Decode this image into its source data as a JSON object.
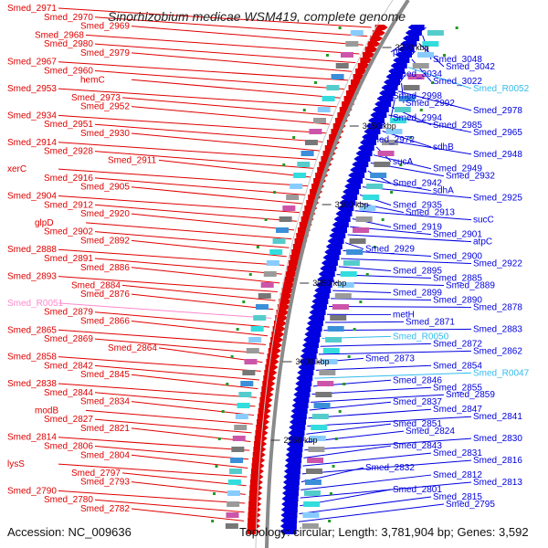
{
  "title": "Sinorhizobium medicae WSM419, complete genome",
  "footer": {
    "accession": "Accession: NC_009636",
    "topology": "Topology: circular; Length: 3,781,904 bp; Genes: 3,592"
  },
  "colors": {
    "left_strand": "#e00000",
    "right_strand": "#0000e0",
    "rna_left": "#ff88cc",
    "rna_right": "#33bbee",
    "backbone": "#888888"
  },
  "ruler_marks": [
    "3200 kbp",
    "3150 kbp",
    "3100 kbp",
    "3050 kbp",
    "3000 kbp",
    "2950 kbp"
  ],
  "left_labels": [
    {
      "text": "Smed_2971",
      "rna": false
    },
    {
      "text": "Smed_2970",
      "rna": false
    },
    {
      "text": "Smed_2969",
      "rna": false
    },
    {
      "text": "Smed_2968",
      "rna": false
    },
    {
      "text": "Smed_2980",
      "rna": false
    },
    {
      "text": "Smed_2979",
      "rna": false
    },
    {
      "text": "Smed_2967",
      "rna": false
    },
    {
      "text": "Smed_2960",
      "rna": false
    },
    {
      "text": "hemC",
      "rna": false
    },
    {
      "text": "Smed_2953",
      "rna": false
    },
    {
      "text": "Smed_2973",
      "rna": false
    },
    {
      "text": "Smed_2952",
      "rna": false
    },
    {
      "text": "Smed_2934",
      "rna": false
    },
    {
      "text": "Smed_2951",
      "rna": false
    },
    {
      "text": "Smed_2930",
      "rna": false
    },
    {
      "text": "Smed_2914",
      "rna": false
    },
    {
      "text": "Smed_2928",
      "rna": false
    },
    {
      "text": "Smed_2911",
      "rna": false
    },
    {
      "text": "xerC",
      "rna": false
    },
    {
      "text": "Smed_2916",
      "rna": false
    },
    {
      "text": "Smed_2905",
      "rna": false
    },
    {
      "text": "Smed_2904",
      "rna": false
    },
    {
      "text": "Smed_2912",
      "rna": false
    },
    {
      "text": "Smed_2920",
      "rna": false
    },
    {
      "text": "glpD",
      "rna": false
    },
    {
      "text": "Smed_2902",
      "rna": false
    },
    {
      "text": "Smed_2892",
      "rna": false
    },
    {
      "text": "Smed_2888",
      "rna": false
    },
    {
      "text": "Smed_2891",
      "rna": false
    },
    {
      "text": "Smed_2886",
      "rna": false
    },
    {
      "text": "Smed_2893",
      "rna": false
    },
    {
      "text": "Smed_2884",
      "rna": false
    },
    {
      "text": "Smed_2876",
      "rna": false
    },
    {
      "text": "Smed_R0051",
      "rna": true
    },
    {
      "text": "Smed_2879",
      "rna": false
    },
    {
      "text": "Smed_2866",
      "rna": false
    },
    {
      "text": "Smed_2865",
      "rna": false
    },
    {
      "text": "Smed_2869",
      "rna": false
    },
    {
      "text": "Smed_2864",
      "rna": false
    },
    {
      "text": "Smed_2858",
      "rna": false
    },
    {
      "text": "Smed_2842",
      "rna": false
    },
    {
      "text": "Smed_2845",
      "rna": false
    },
    {
      "text": "Smed_2838",
      "rna": false
    },
    {
      "text": "Smed_2844",
      "rna": false
    },
    {
      "text": "Smed_2834",
      "rna": false
    },
    {
      "text": "modB",
      "rna": false
    },
    {
      "text": "Smed_2827",
      "rna": false
    },
    {
      "text": "Smed_2821",
      "rna": false
    },
    {
      "text": "Smed_2814",
      "rna": false
    },
    {
      "text": "Smed_2806",
      "rna": false
    },
    {
      "text": "Smed_2804",
      "rna": false
    },
    {
      "text": "lysS",
      "rna": false
    },
    {
      "text": "Smed_2797",
      "rna": false
    },
    {
      "text": "Smed_2793",
      "rna": false
    },
    {
      "text": "Smed_2790",
      "rna": false
    },
    {
      "text": "Smed_2780",
      "rna": false
    },
    {
      "text": "Smed_2782",
      "rna": false
    }
  ],
  "right_labels": [
    {
      "text": "phhB",
      "rna": false
    },
    {
      "text": "Smed_3048",
      "rna": false
    },
    {
      "text": "Smed_3042",
      "rna": false
    },
    {
      "text": "Smed_3034",
      "rna": false
    },
    {
      "text": "Smed_3022",
      "rna": false
    },
    {
      "text": "Smed_R0052",
      "rna": true
    },
    {
      "text": "Smed_2998",
      "rna": false
    },
    {
      "text": "Smed_2992",
      "rna": false
    },
    {
      "text": "Smed_2978",
      "rna": false
    },
    {
      "text": "Smed_2994",
      "rna": false
    },
    {
      "text": "Smed_2985",
      "rna": false
    },
    {
      "text": "Smed_2965",
      "rna": false
    },
    {
      "text": "Smed_2972",
      "rna": false
    },
    {
      "text": "sdhB",
      "rna": false
    },
    {
      "text": "Smed_2948",
      "rna": false
    },
    {
      "text": "sucA",
      "rna": false
    },
    {
      "text": "Smed_2949",
      "rna": false
    },
    {
      "text": "Smed_2932",
      "rna": false
    },
    {
      "text": "Smed_2942",
      "rna": false
    },
    {
      "text": "sdhA",
      "rna": false
    },
    {
      "text": "Smed_2925",
      "rna": false
    },
    {
      "text": "Smed_2935",
      "rna": false
    },
    {
      "text": "Smed_2913",
      "rna": false
    },
    {
      "text": "sucC",
      "rna": false
    },
    {
      "text": "Smed_2919",
      "rna": false
    },
    {
      "text": "Smed_2901",
      "rna": false
    },
    {
      "text": "atpC",
      "rna": false
    },
    {
      "text": "Smed_2929",
      "rna": false
    },
    {
      "text": "Smed_2900",
      "rna": false
    },
    {
      "text": "Smed_2922",
      "rna": false
    },
    {
      "text": "Smed_2895",
      "rna": false
    },
    {
      "text": "Smed_2885",
      "rna": false
    },
    {
      "text": "Smed_2889",
      "rna": false
    },
    {
      "text": "Smed_2899",
      "rna": false
    },
    {
      "text": "Smed_2890",
      "rna": false
    },
    {
      "text": "Smed_2878",
      "rna": false
    },
    {
      "text": "metH",
      "rna": false
    },
    {
      "text": "Smed_2871",
      "rna": false
    },
    {
      "text": "Smed_2883",
      "rna": false
    },
    {
      "text": "Smed_R0050",
      "rna": true
    },
    {
      "text": "Smed_2872",
      "rna": false
    },
    {
      "text": "Smed_2862",
      "rna": false
    },
    {
      "text": "Smed_2873",
      "rna": false
    },
    {
      "text": "Smed_2854",
      "rna": false
    },
    {
      "text": "Smed_R0047",
      "rna": true
    },
    {
      "text": "Smed_2846",
      "rna": false
    },
    {
      "text": "Smed_2855",
      "rna": false
    },
    {
      "text": "Smed_2859",
      "rna": false
    },
    {
      "text": "Smed_2837",
      "rna": false
    },
    {
      "text": "Smed_2847",
      "rna": false
    },
    {
      "text": "Smed_2841",
      "rna": false
    },
    {
      "text": "Smed_2851",
      "rna": false
    },
    {
      "text": "Smed_2824",
      "rna": false
    },
    {
      "text": "Smed_2830",
      "rna": false
    },
    {
      "text": "Smed_2843",
      "rna": false
    },
    {
      "text": "Smed_2831",
      "rna": false
    },
    {
      "text": "Smed_2816",
      "rna": false
    },
    {
      "text": "Smed_2832",
      "rna": false
    },
    {
      "text": "Smed_2812",
      "rna": false
    },
    {
      "text": "Smed_2813",
      "rna": false
    },
    {
      "text": "Smed_2801",
      "rna": false
    },
    {
      "text": "Smed_2815",
      "rna": false
    },
    {
      "text": "Smed_2795",
      "rna": false
    }
  ]
}
